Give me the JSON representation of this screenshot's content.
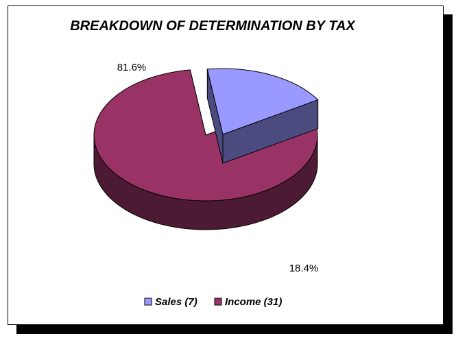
{
  "chart_data": {
    "type": "pie",
    "title": "BREAKDOWN OF DETERMINATION BY TAX",
    "categories": [
      "Sales (7)",
      "Income (31)"
    ],
    "values": [
      7,
      31
    ],
    "percent_labels": [
      "18.4%",
      "81.6%"
    ],
    "colors": [
      "#9999ff",
      "#993366"
    ],
    "side_colors": [
      "#4b4b80",
      "#4d1a33"
    ],
    "exploded": "Sales (7)",
    "three_d": true,
    "legend": "bottom"
  }
}
